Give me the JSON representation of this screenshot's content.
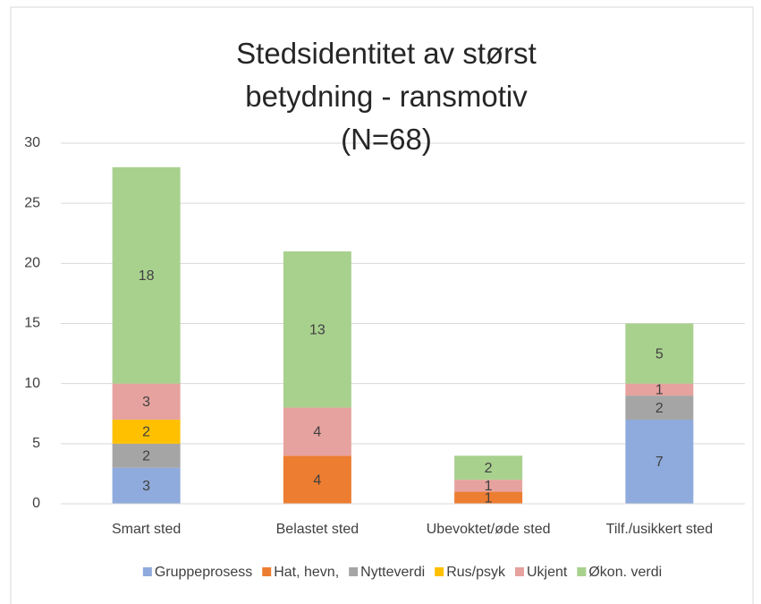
{
  "chart_data": {
    "type": "stacked_bar",
    "title": "Stedsidentitet av størst betydning - ransmotiv (N=68)",
    "categories": [
      "Smart sted",
      "Belastet sted",
      "Ubevoktet/øde sted",
      "Tilf./usikkert sted"
    ],
    "series": [
      {
        "name": "Gruppeprosess",
        "color": "#8faadc",
        "values": [
          3,
          null,
          null,
          7
        ]
      },
      {
        "name": "Hat, hevn,",
        "color": "#ed7d31",
        "values": [
          null,
          4,
          1,
          null
        ]
      },
      {
        "name": "Nytteverdi",
        "color": "#a5a5a5",
        "values": [
          2,
          null,
          null,
          2
        ]
      },
      {
        "name": "Rus/psyk",
        "color": "#ffc000",
        "values": [
          2,
          null,
          null,
          null
        ]
      },
      {
        "name": "Ukjent",
        "color": "#e6a29f",
        "values": [
          3,
          4,
          1,
          1
        ]
      },
      {
        "name": "Økon. verdi",
        "color": "#a9d18e",
        "values": [
          18,
          13,
          2,
          5
        ]
      }
    ],
    "ylim": [
      0,
      30
    ],
    "yticks": [
      0,
      5,
      10,
      15,
      20,
      25,
      30
    ],
    "grid": true,
    "legend": "bottom"
  }
}
